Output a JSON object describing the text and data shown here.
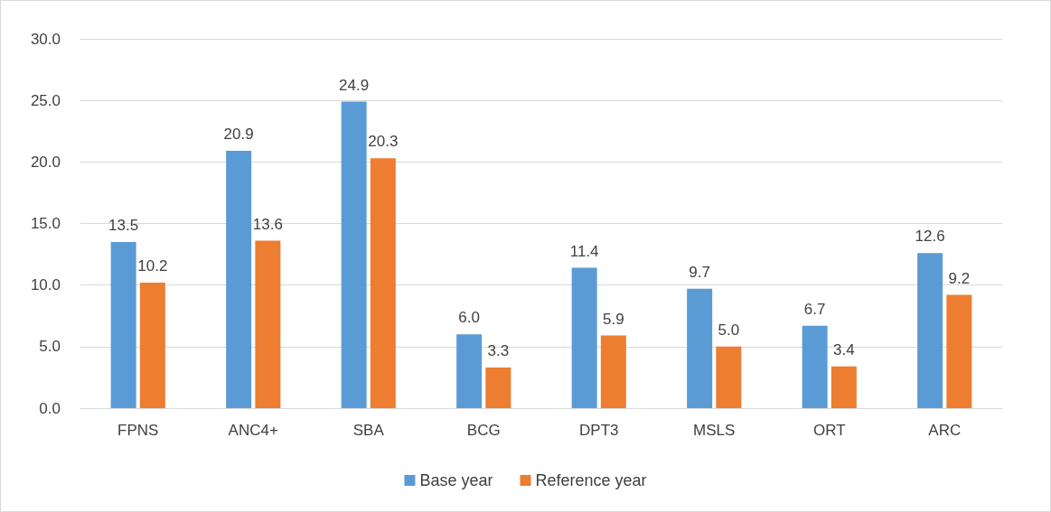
{
  "chart_data": {
    "type": "bar",
    "categories": [
      "FPNS",
      "ANC4+",
      "SBA",
      "BCG",
      "DPT3",
      "MSLS",
      "ORT",
      "ARC"
    ],
    "series": [
      {
        "name": "Base year",
        "color": "#5b9bd5",
        "values": [
          13.5,
          20.9,
          24.9,
          6.0,
          11.4,
          9.7,
          6.7,
          12.6
        ],
        "value_labels": [
          "13.5",
          "20.9",
          "24.9",
          "6.0",
          "11.4",
          "9.7",
          "6.7",
          "12.6"
        ]
      },
      {
        "name": "Reference year",
        "color": "#ed7d31",
        "values": [
          10.2,
          13.6,
          20.3,
          3.3,
          5.9,
          5.0,
          3.4,
          9.2
        ],
        "value_labels": [
          "10.2",
          "13.6",
          "20.3",
          "3.3",
          "5.9",
          "5.0",
          "3.4",
          "9.2"
        ]
      }
    ],
    "ylim": [
      0,
      30
    ],
    "yticks": [
      {
        "value": 0,
        "label": "0.0"
      },
      {
        "value": 5,
        "label": "5.0"
      },
      {
        "value": 10,
        "label": "10.0"
      },
      {
        "value": 15,
        "label": "15.0"
      },
      {
        "value": 20,
        "label": "20.0"
      },
      {
        "value": 25,
        "label": "25.0"
      },
      {
        "value": 30,
        "label": "30.0"
      }
    ],
    "grid": "y",
    "legend": "bottom"
  }
}
